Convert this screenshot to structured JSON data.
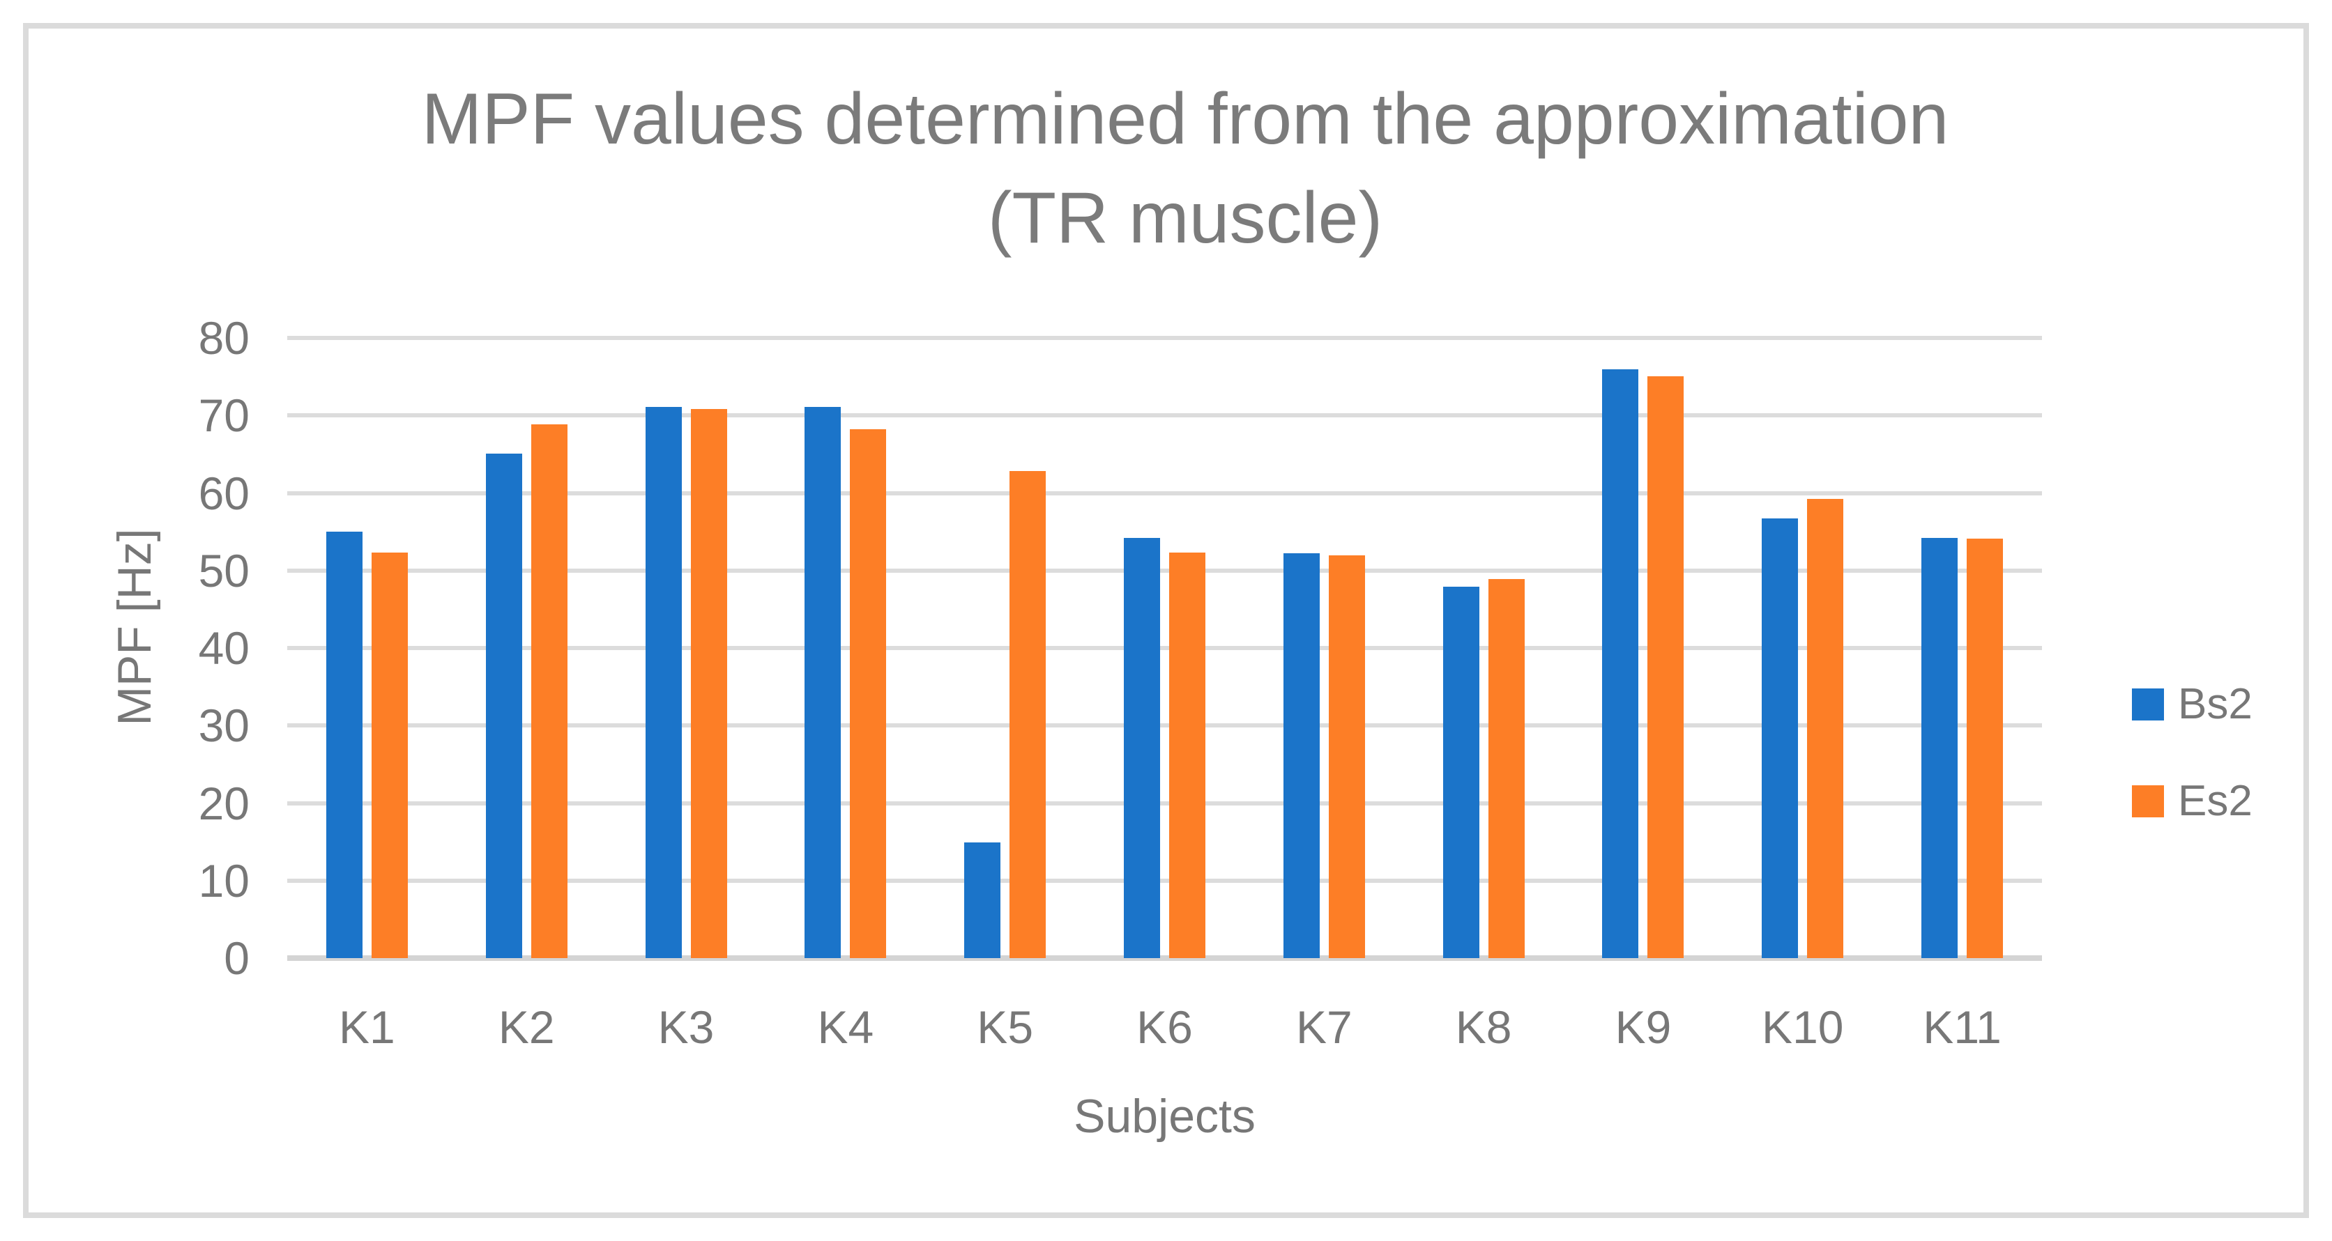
{
  "chart_data": {
    "type": "bar",
    "title": "MPF values determined from the approximation (TR muscle)",
    "title_lines": [
      "MPF values determined from the approximation",
      "(TR muscle)"
    ],
    "xlabel": "Subjects",
    "ylabel": "MPF [Hz]",
    "ylim": [
      0,
      80
    ],
    "yticks": [
      0,
      10,
      20,
      30,
      40,
      50,
      60,
      70,
      80
    ],
    "grid": true,
    "legend_position": "right",
    "categories": [
      "K1",
      "K2",
      "K3",
      "K4",
      "K5",
      "K6",
      "K7",
      "K8",
      "K9",
      "K10",
      "K11"
    ],
    "series": [
      {
        "name": "Bs2",
        "color": "#1B74C9",
        "values": [
          55.0,
          65.1,
          71.1,
          71.1,
          14.9,
          54.2,
          52.2,
          47.9,
          76.0,
          56.7,
          54.2
        ]
      },
      {
        "name": "Es2",
        "color": "#FD7E26",
        "values": [
          52.3,
          68.9,
          70.8,
          68.2,
          62.8,
          52.3,
          52.0,
          48.9,
          75.1,
          59.2,
          54.1
        ]
      }
    ]
  },
  "colors": {
    "gridline": "#DCDCDC",
    "axis_line": "#D4D4D4",
    "frame_border": "#DBDBDB",
    "text": "#777777",
    "title_text": "#7B7B7B",
    "background": "#FFFFFF"
  }
}
